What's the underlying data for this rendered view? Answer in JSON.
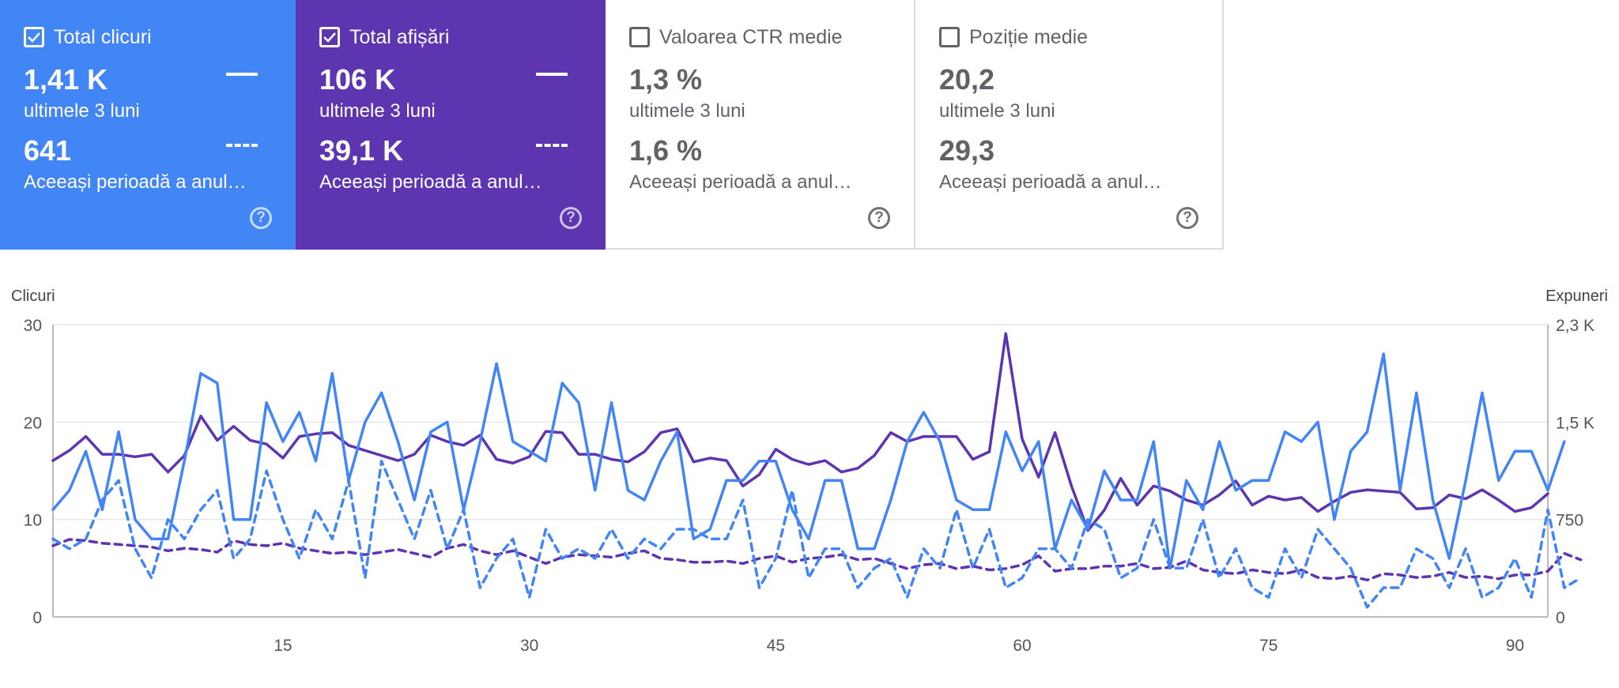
{
  "cards": [
    {
      "label": "Total clicuri",
      "checked": true,
      "value": "1,41 K",
      "period": "ultimele 3 luni",
      "compare_value": "641",
      "compare_period": "Aceeași perioadă a anul…",
      "help": "?"
    },
    {
      "label": "Total afișări",
      "checked": true,
      "value": "106 K",
      "period": "ultimele 3 luni",
      "compare_value": "39,1 K",
      "compare_period": "Aceeași perioadă a anul…",
      "help": "?"
    },
    {
      "label": "Valoarea CTR medie",
      "checked": false,
      "value": "1,3 %",
      "period": "ultimele 3 luni",
      "compare_value": "1,6 %",
      "compare_period": "Aceeași perioadă a anul…",
      "help": "?"
    },
    {
      "label": "Poziție medie",
      "checked": false,
      "value": "20,2",
      "period": "ultimele 3 luni",
      "compare_value": "29,3",
      "compare_period": "Aceeași perioadă a anul…",
      "help": "?"
    }
  ],
  "colors": {
    "clicks": "#4285f4",
    "impressions": "#5e35b1",
    "grid": "#e6e6e6",
    "axis": "#555555"
  },
  "chart_data": {
    "type": "line",
    "left_axis_label": "Clicuri",
    "right_axis_label": "Expuneri",
    "left_ticks": [
      "0",
      "10",
      "20",
      "30"
    ],
    "right_ticks": [
      "0",
      "750",
      "1,5 K",
      "2,3 K"
    ],
    "x_ticks": [
      "15",
      "30",
      "45",
      "60",
      "75",
      "90"
    ],
    "x_tick_values": [
      15,
      30,
      45,
      60,
      75,
      90
    ],
    "x_range": [
      1,
      92
    ],
    "ylim_left": [
      0,
      30
    ],
    "ylim_right": [
      0,
      2300
    ],
    "grid": true,
    "series": [
      {
        "style": "solid",
        "axis": "left",
        "color": "#4285f4",
        "values": [
          11,
          13,
          17,
          11,
          19,
          10,
          8,
          8,
          16,
          25,
          24,
          10,
          10,
          22,
          18,
          21,
          16,
          25,
          14,
          20,
          23,
          18,
          12,
          19,
          20,
          11,
          18,
          26,
          18,
          17,
          16,
          24,
          22,
          13,
          22,
          13,
          12,
          16,
          19,
          8,
          9,
          14,
          14,
          16,
          16,
          11,
          8,
          14,
          14,
          7,
          7,
          12,
          18,
          21,
          18,
          12,
          11,
          11,
          19,
          15,
          18,
          7,
          12,
          9,
          15,
          12,
          12,
          18,
          5,
          14,
          11,
          18,
          13,
          14,
          14,
          19,
          18,
          20,
          10,
          17,
          19,
          27,
          13,
          23,
          12,
          6,
          14,
          23,
          14,
          17,
          17,
          13,
          18
        ]
      },
      {
        "style": "dashed",
        "axis": "left",
        "color": "#4285f4",
        "values": [
          8,
          7,
          8,
          12,
          14,
          7,
          4,
          10,
          8,
          11,
          13,
          6,
          8,
          15,
          10,
          6,
          11,
          8,
          14,
          4,
          16,
          12,
          8,
          13,
          7,
          11,
          3,
          6,
          8,
          2,
          9,
          6,
          7,
          6,
          9,
          6,
          8,
          7,
          9,
          9,
          8,
          8,
          12,
          3,
          6,
          13,
          4,
          7,
          7,
          3,
          5,
          6,
          2,
          7,
          5,
          11,
          5,
          9,
          3,
          4,
          7,
          7,
          5,
          10,
          9,
          4,
          5,
          10,
          5,
          5,
          10,
          4,
          7,
          3,
          2,
          7,
          4,
          9,
          7,
          5,
          1,
          3,
          3,
          7,
          6,
          3,
          7,
          2,
          3,
          6,
          2,
          11,
          3,
          4
        ]
      },
      {
        "style": "solid",
        "axis": "right",
        "color": "#5e35b1",
        "values": [
          1230,
          1310,
          1420,
          1280,
          1280,
          1260,
          1280,
          1140,
          1270,
          1580,
          1390,
          1500,
          1390,
          1360,
          1250,
          1420,
          1440,
          1450,
          1350,
          1310,
          1270,
          1230,
          1280,
          1430,
          1380,
          1350,
          1430,
          1240,
          1210,
          1260,
          1460,
          1450,
          1280,
          1280,
          1240,
          1220,
          1300,
          1450,
          1480,
          1220,
          1250,
          1230,
          1030,
          1120,
          1320,
          1240,
          1200,
          1230,
          1140,
          1170,
          1270,
          1450,
          1380,
          1420,
          1420,
          1420,
          1240,
          1300,
          2230,
          1400,
          1100,
          1450,
          1030,
          680,
          840,
          1090,
          880,
          1030,
          990,
          920,
          880,
          960,
          1070,
          880,
          950,
          920,
          940,
          830,
          910,
          980,
          1000,
          990,
          980,
          850,
          860,
          960,
          930,
          1000,
          920,
          830,
          860,
          970
        ]
      },
      {
        "style": "dashed",
        "axis": "right",
        "color": "#5e35b1",
        "values": [
          560,
          610,
          600,
          580,
          570,
          560,
          550,
          520,
          540,
          530,
          510,
          600,
          570,
          560,
          580,
          540,
          520,
          500,
          510,
          490,
          510,
          530,
          500,
          470,
          540,
          570,
          520,
          490,
          520,
          470,
          420,
          470,
          490,
          480,
          470,
          500,
          520,
          460,
          450,
          430,
          430,
          440,
          420,
          460,
          480,
          430,
          460,
          470,
          490,
          450,
          460,
          420,
          380,
          410,
          420,
          380,
          400,
          370,
          380,
          410,
          480,
          360,
          380,
          380,
          400,
          400,
          420,
          380,
          390,
          440,
          370,
          350,
          340,
          370,
          350,
          340,
          370,
          310,
          300,
          320,
          290,
          340,
          330,
          310,
          320,
          350,
          310,
          320,
          300,
          330,
          330,
          360,
          500,
          450
        ]
      }
    ]
  }
}
